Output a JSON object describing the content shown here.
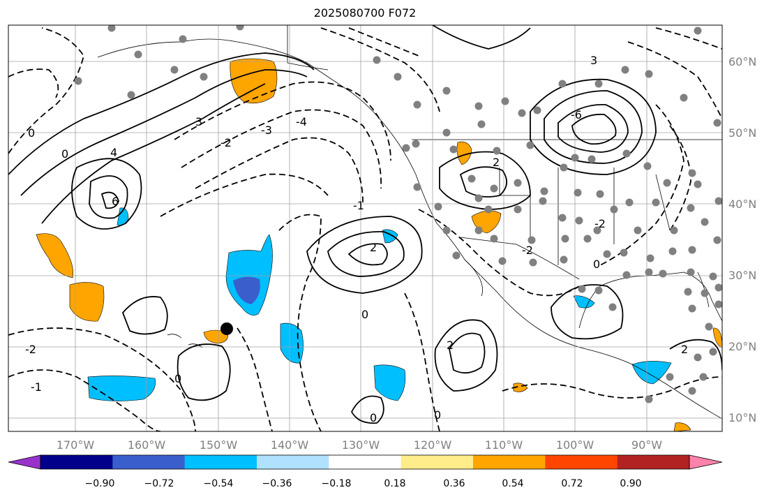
{
  "title": "2025080700 F072",
  "axes": {
    "lon_labels": [
      "170°W",
      "160°W",
      "150°W",
      "140°W",
      "130°W",
      "120°W",
      "110°W",
      "100°W",
      "90°W"
    ],
    "lat_labels": [
      "60°N",
      "50°N",
      "40°N",
      "30°N",
      "20°N",
      "10°N"
    ],
    "lon_range": [
      -180,
      -80
    ],
    "lat_range": [
      8,
      65
    ],
    "grid": true
  },
  "colorbar": {
    "tick_labels": [
      "−0.90",
      "−0.72",
      "−0.54",
      "−0.36",
      "−0.18",
      "0.18",
      "0.36",
      "0.54",
      "0.72",
      "0.90"
    ],
    "colors": [
      "#9932cc",
      "#00008b",
      "#3a5fcd",
      "#00bfff",
      "#b0e2ff",
      "#ffffff",
      "#ffec8b",
      "#ffa500",
      "#ff4500",
      "#b22222",
      "#ff82ab"
    ],
    "extend": "both"
  },
  "contour_labels": {
    "items": [
      "0",
      "4",
      "-2",
      "3",
      "-1",
      "-4",
      "-3",
      "2",
      "6",
      "-6"
    ]
  },
  "colors": {
    "positive_contour": "#000000",
    "grid": "#a0a0a0",
    "station": "#808080",
    "marker": "#000000",
    "axis_label": "#808080"
  }
}
